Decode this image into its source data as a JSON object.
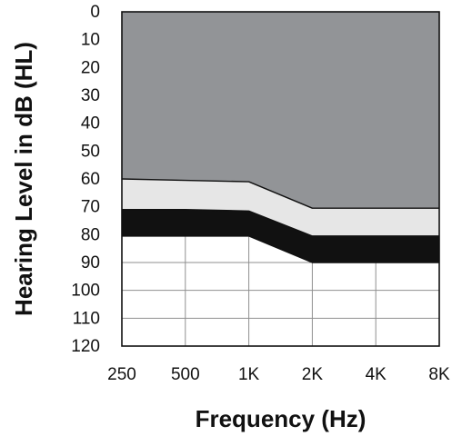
{
  "chart_data": {
    "type": "area",
    "title": "",
    "xlabel": "Frequency (Hz)",
    "ylabel": "Hearing Level in dB (HL)",
    "categories": [
      "250",
      "500",
      "1K",
      "2K",
      "4K",
      "8K"
    ],
    "y_ticks": [
      0,
      10,
      20,
      30,
      40,
      50,
      60,
      70,
      80,
      90,
      100,
      110,
      120
    ],
    "ylim": [
      0,
      120
    ],
    "y_inverted": true,
    "grid": true,
    "background_color": "#ffffff",
    "line_color": "#111111",
    "series": [
      {
        "values": [
          60,
          60.5,
          61,
          70.5,
          70.5,
          70.5
        ],
        "color": "#929497"
      },
      {
        "values": [
          71,
          71,
          71.5,
          80.5,
          80.5,
          80.5
        ],
        "color": "#e6e6e6"
      },
      {
        "values": [
          80.5,
          80.5,
          80.5,
          90,
          90,
          90
        ],
        "color": "#111111"
      }
    ]
  }
}
